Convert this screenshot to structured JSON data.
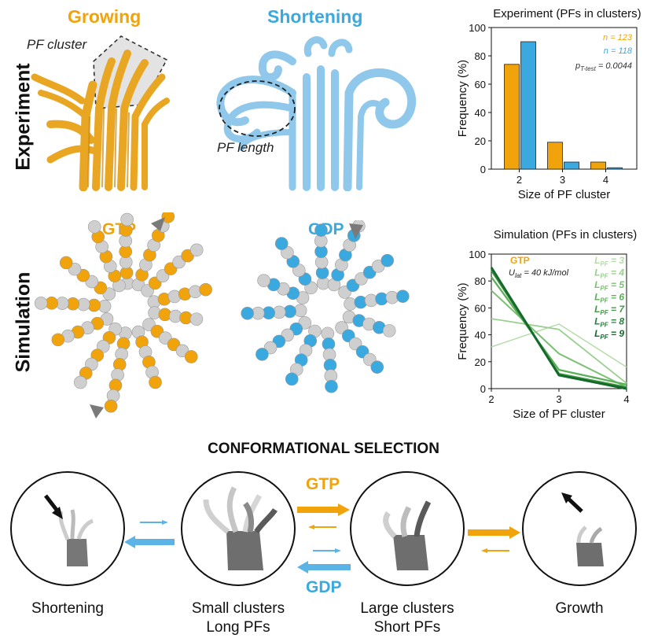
{
  "row_labels": {
    "experiment": "Experiment",
    "simulation": "Simulation"
  },
  "experiment": {
    "growing_title": "Growing",
    "shortening_title": "Shortening",
    "pf_cluster_label": "PF cluster",
    "pf_length_label": "PF length"
  },
  "simulation": {
    "gtp_title": "GTP",
    "gdp_title": "GDP"
  },
  "colors": {
    "gold": "#f0a30a",
    "blue": "#3aa9e0",
    "grey": "#cfcfcf"
  },
  "chart_data": [
    {
      "type": "bar",
      "title": "Experiment (PFs in clusters)",
      "xlabel": "Size of PF cluster",
      "ylabel": "Frequency (%)",
      "categories": [
        "2",
        "3",
        "4"
      ],
      "ylim": [
        0,
        100
      ],
      "yticks": [
        "0",
        "20",
        "40",
        "60",
        "80",
        "100"
      ],
      "series": [
        {
          "name": "Growing",
          "color": "#f0a30a",
          "values": [
            74,
            19,
            5
          ]
        },
        {
          "name": "Shortening",
          "color": "#3aa9e0",
          "values": [
            90,
            5,
            1
          ]
        }
      ],
      "annotations": {
        "n_growing": "n = 123",
        "n_shortening": "n = 118",
        "p_label": "p",
        "p_sub": "T-test",
        "p_value": " = 0.0044"
      }
    },
    {
      "type": "line",
      "title": "Simulation (PFs in clusters)",
      "xlabel": "Size of PF cluster",
      "ylabel": "Frequency (%)",
      "x": [
        2,
        3,
        4
      ],
      "xticks": [
        "2",
        "3",
        "4"
      ],
      "ylim": [
        0,
        100
      ],
      "yticks": [
        "0",
        "20",
        "40",
        "60",
        "80",
        "100"
      ],
      "legend_title": "GTP",
      "legend_sub_main": "U",
      "legend_sub_idx": "lat",
      "legend_sub_val": " = 40 kJ/mol",
      "series": [
        {
          "name": "L",
          "sub": "PF",
          "eq": " = 3",
          "color": "#b5dca8",
          "values": [
            31,
            48,
            16
          ]
        },
        {
          "name": "L",
          "sub": "PF",
          "eq": " = 4",
          "color": "#99cf8e",
          "values": [
            52,
            44,
            4
          ]
        },
        {
          "name": "L",
          "sub": "PF",
          "eq": " = 5",
          "color": "#7cc073",
          "values": [
            73,
            26,
            1
          ]
        },
        {
          "name": "L",
          "sub": "PF",
          "eq": " = 6",
          "color": "#5caf58",
          "values": [
            83,
            14,
            3
          ]
        },
        {
          "name": "L",
          "sub": "PF",
          "eq": " = 7",
          "color": "#3f9a42",
          "values": [
            88,
            11,
            1
          ]
        },
        {
          "name": "L",
          "sub": "PF",
          "eq": " = 8",
          "color": "#25823a",
          "values": [
            90,
            10,
            0
          ]
        },
        {
          "name": "L",
          "sub": "PF",
          "eq": " = 9",
          "color": "#156a2c",
          "values": [
            90,
            10,
            0
          ]
        }
      ]
    }
  ],
  "selection": {
    "title": "CONFORMATIONAL SELECTION",
    "gtp_label": "GTP",
    "gdp_label": "GDP",
    "stages": [
      {
        "line1": "Shortening",
        "line2": ""
      },
      {
        "line1": "Small clusters",
        "line2": "Long PFs"
      },
      {
        "line1": "Large clusters",
        "line2": "Short PFs"
      },
      {
        "line1": "Growth",
        "line2": ""
      }
    ]
  }
}
